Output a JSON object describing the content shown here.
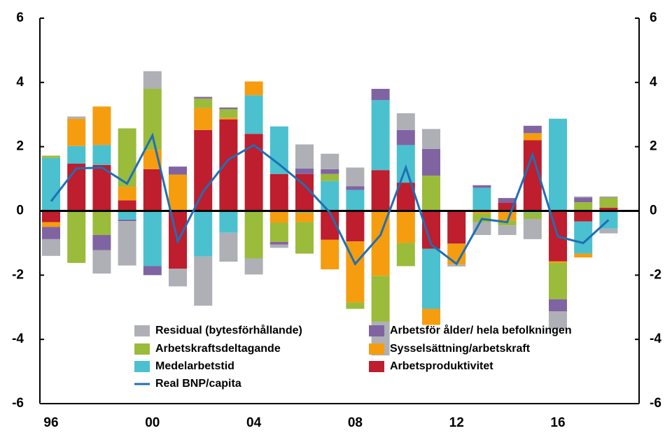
{
  "chart_data": {
    "type": "stacked_bar_line",
    "categories": [
      "96",
      null,
      null,
      null,
      "00",
      null,
      null,
      null,
      "04",
      null,
      null,
      null,
      "08",
      null,
      null,
      null,
      "12",
      null,
      null,
      null,
      "16",
      null,
      null
    ],
    "series": [
      {
        "name": "Arbetsproduktivitet",
        "color": "#be1e2d",
        "values": [
          -0.35,
          1.47,
          1.43,
          0.33,
          1.3,
          -1.8,
          2.52,
          2.85,
          2.4,
          1.15,
          1.15,
          -0.9,
          -0.95,
          1.27,
          0.88,
          -1.18,
          -1.02,
          0,
          0.25,
          2.2,
          -1.57,
          -0.33,
          0.1
        ]
      },
      {
        "name": "Medelarbetstid",
        "color": "#4bc0cf",
        "values": [
          1.65,
          0.55,
          0.62,
          -0.27,
          -1.72,
          0,
          -1.42,
          -0.68,
          1.2,
          1.48,
          -0.05,
          0.93,
          0.65,
          2.18,
          1.17,
          -1.87,
          0,
          0.72,
          0,
          -0.05,
          2.87,
          -1.0,
          -0.55
        ]
      },
      {
        "name": "Sysselsättning/arbetskraft",
        "color": "#f59d0f",
        "values": [
          -0.15,
          0.85,
          1.2,
          0.42,
          0.6,
          1.13,
          0.68,
          0.05,
          0.43,
          -0.37,
          -0.3,
          -0.92,
          -1.9,
          -2.02,
          -1.0,
          -0.5,
          -0.65,
          -0.08,
          -0.3,
          0.22,
          -0.05,
          -0.12,
          0
        ]
      },
      {
        "name": "Arbetskraftsdeltagande",
        "color": "#9bbb3b",
        "values": [
          0.07,
          -1.62,
          -0.75,
          1.82,
          1.9,
          0,
          0.3,
          0.27,
          -1.48,
          -0.6,
          -0.98,
          0.22,
          -0.2,
          -1.43,
          -0.72,
          1.1,
          0,
          -0.27,
          -0.15,
          -0.2,
          -1.13,
          0.27,
          0.32
        ]
      },
      {
        "name": "Arbetsför ålder/ hela befolkningen",
        "color": "#8064a2",
        "values": [
          -0.38,
          0,
          -0.47,
          -0.05,
          -0.28,
          0.25,
          0.05,
          0.05,
          0,
          -0.08,
          0.17,
          0.15,
          0.12,
          0.35,
          0.47,
          0.83,
          0,
          0.08,
          0.15,
          0.23,
          -0.38,
          0.15,
          0.02
        ]
      },
      {
        "name": "Residual (bytesförhållande)",
        "color": "#aeb0b5",
        "values": [
          -0.52,
          0.07,
          -0.73,
          -1.38,
          0.55,
          -0.55,
          -1.53,
          -0.9,
          -0.5,
          -0.1,
          0.75,
          0.48,
          0.58,
          -1.05,
          0.52,
          0.62,
          -0.06,
          -0.4,
          -0.3,
          -0.63,
          -0.55,
          0.03,
          -0.15
        ]
      }
    ],
    "line": {
      "name": "Real BNP/capita",
      "color": "#1f6fb5",
      "values": [
        0.3,
        1.32,
        1.35,
        0.85,
        2.35,
        -0.95,
        0.6,
        1.6,
        2.05,
        1.45,
        0.8,
        -0.05,
        -1.65,
        -0.75,
        1.35,
        -1.05,
        -1.65,
        -0.25,
        -0.35,
        1.75,
        -0.8,
        -1.0,
        -0.28
      ]
    },
    "ylim": [
      -6,
      6
    ],
    "yticks": [
      -6,
      -4,
      -2,
      0,
      2,
      4,
      6
    ]
  }
}
